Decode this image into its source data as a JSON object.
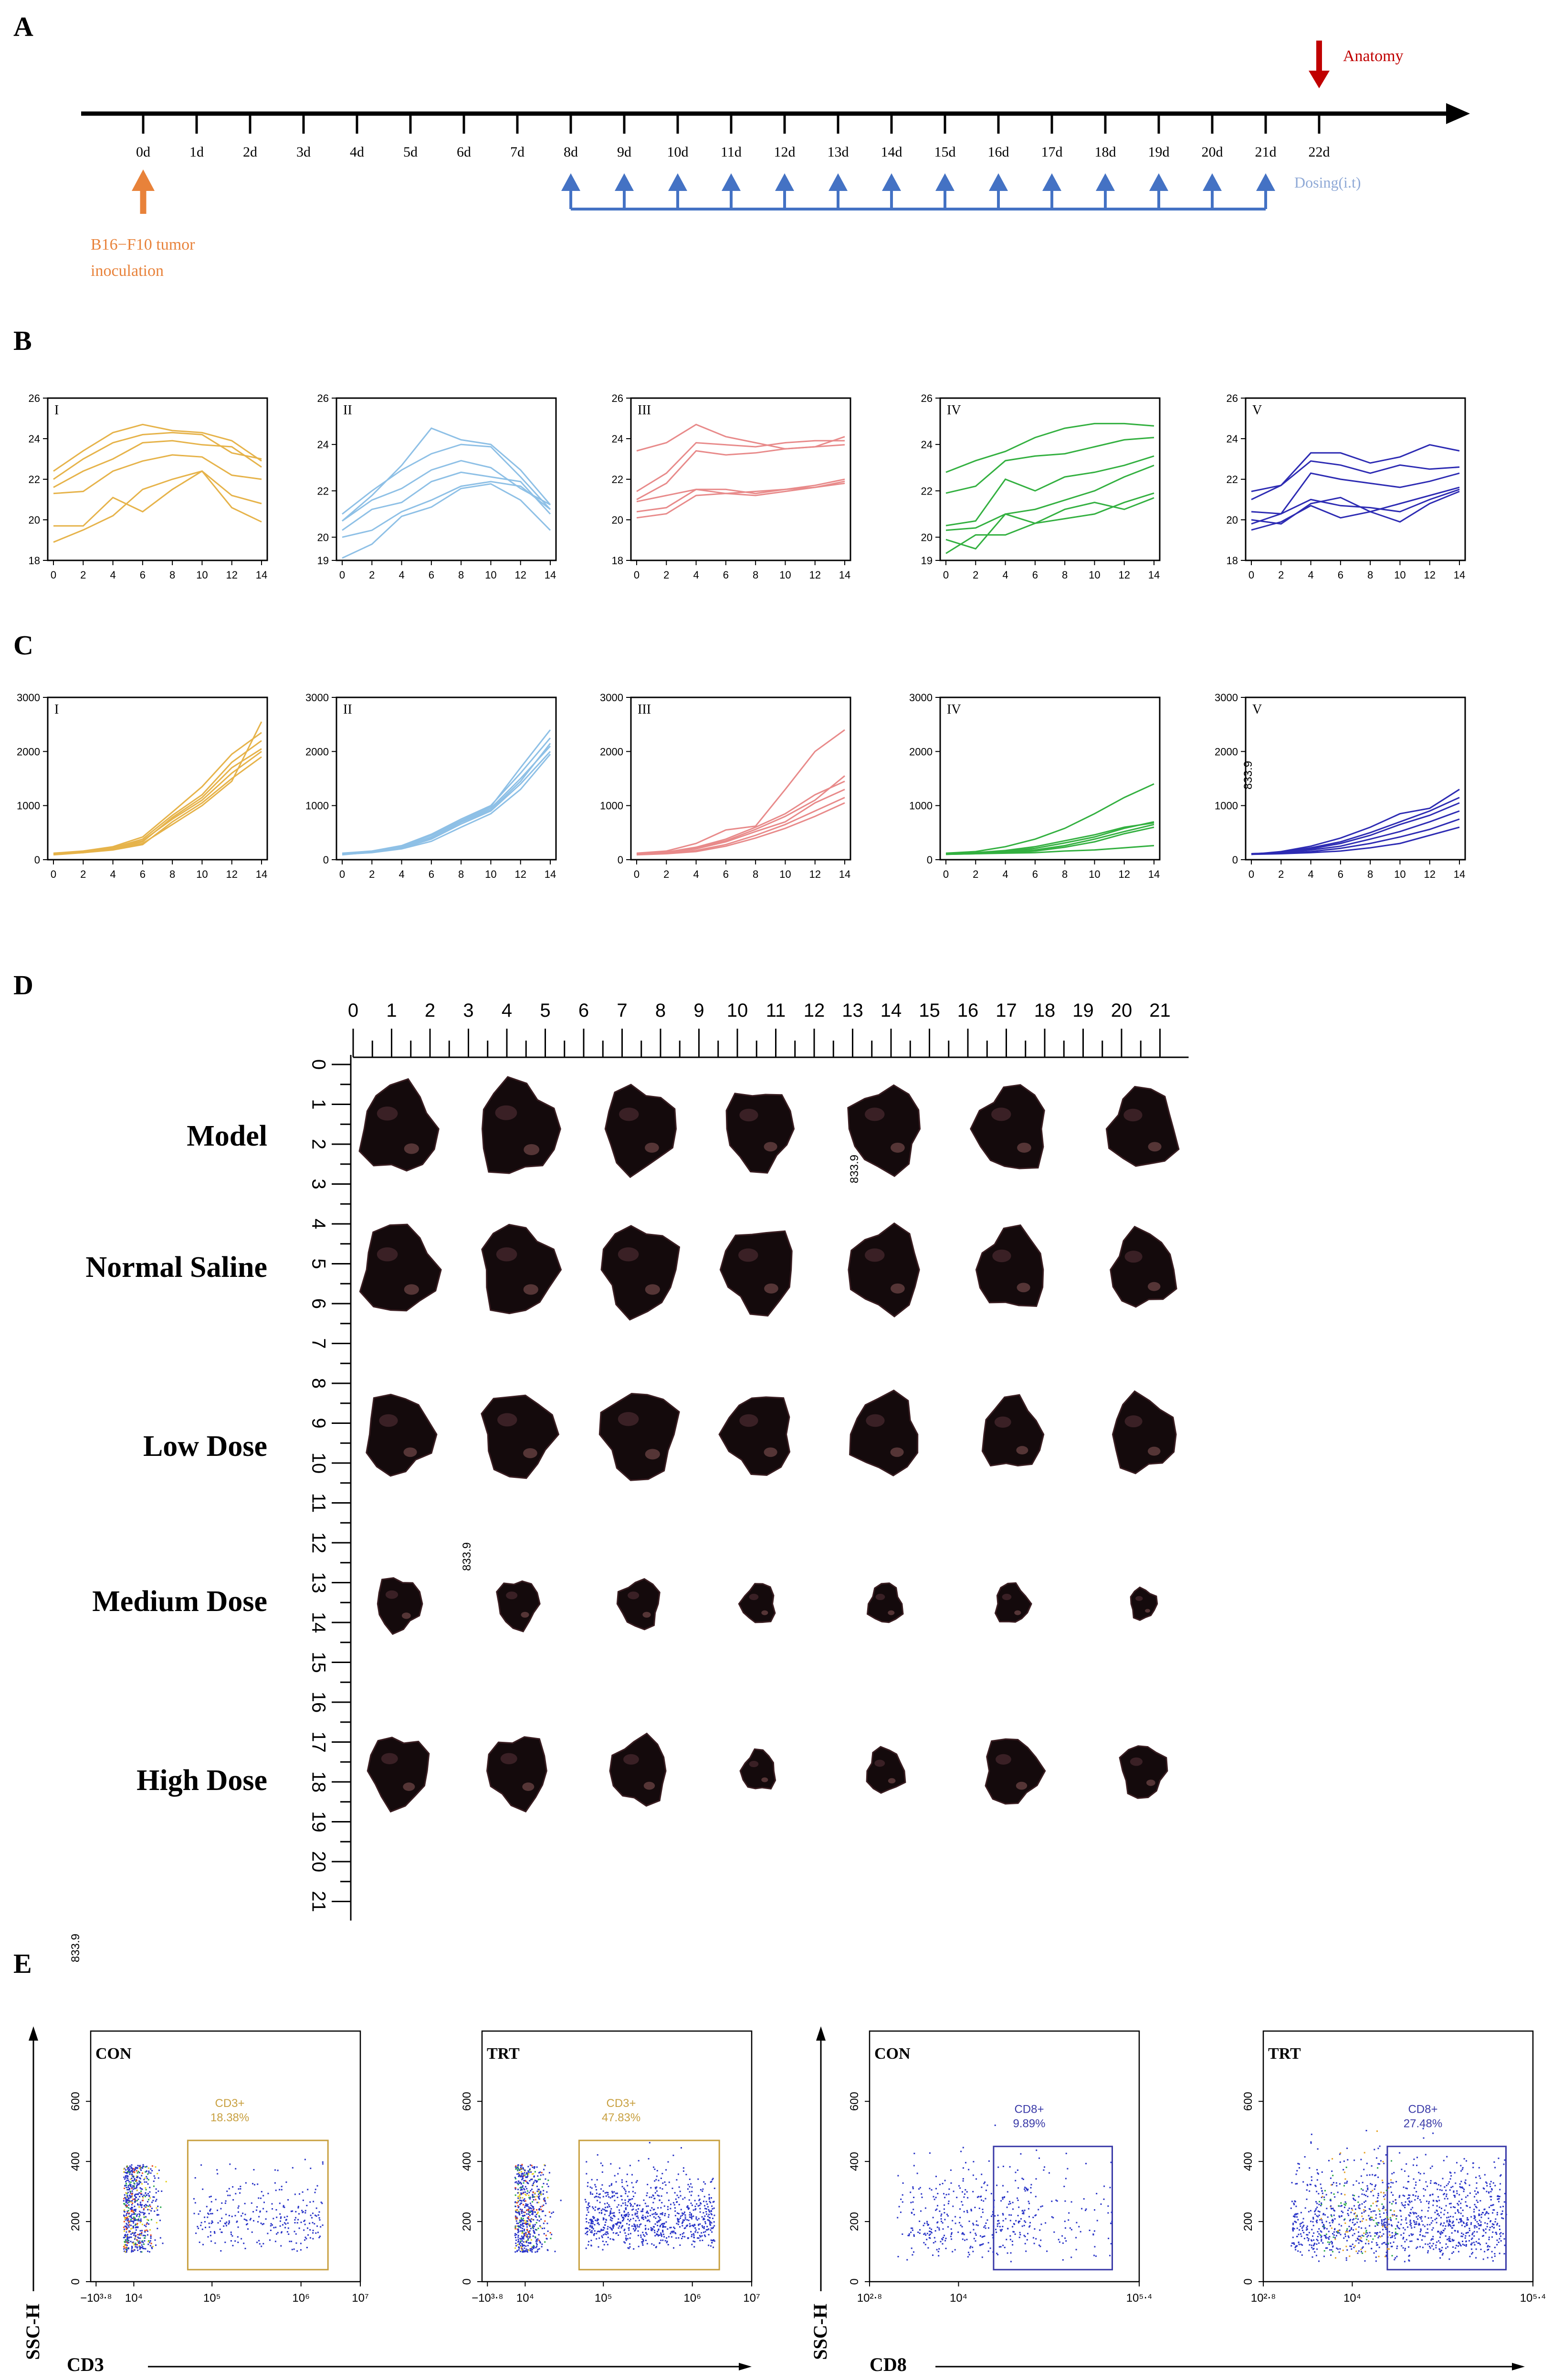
{
  "panels": {
    "a": "A",
    "b": "B",
    "c": "C",
    "d": "D",
    "e": "E"
  },
  "panel_a": {
    "days": [
      "0d",
      "1d",
      "2d",
      "3d",
      "4d",
      "5d",
      "6d",
      "7d",
      "8d",
      "9d",
      "10d",
      "11d",
      "12d",
      "13d",
      "14d",
      "15d",
      "16d",
      "17d",
      "18d",
      "19d",
      "20d",
      "21d",
      "22d"
    ],
    "anatomy": "Anatomy",
    "inoculation_line1": "B16−F10 tumor",
    "inoculation_line2": "inoculation",
    "dosing": "Dosing(i.t)",
    "dosing_days": [
      8,
      9,
      10,
      11,
      12,
      13,
      14,
      15,
      16,
      17,
      18,
      19,
      20,
      21
    ],
    "colors": {
      "inoculation": "#e8823a",
      "anatomy": "#c00000",
      "dosing": "#4472c4",
      "dosing_text": "#8fa9d6"
    }
  },
  "panel_b": {
    "chart_data": [
      {
        "type": "line",
        "label": "I",
        "color": "#e6b34a",
        "x": [
          0,
          2,
          4,
          6,
          8,
          10,
          12,
          14
        ],
        "ylim": [
          18,
          26
        ],
        "yticks": [
          18,
          20,
          22,
          24,
          26
        ],
        "xticks": [
          0,
          2,
          4,
          6,
          8,
          10,
          12,
          14
        ],
        "series": [
          [
            19.7,
            19.7,
            21.1,
            20.4,
            21.5,
            22.4,
            21.2,
            20.8
          ],
          [
            18.9,
            19.5,
            20.2,
            21.5,
            22.0,
            22.4,
            20.6,
            19.9
          ],
          [
            21.3,
            21.4,
            22.4,
            22.9,
            23.2,
            23.1,
            22.2,
            22.0
          ],
          [
            21.6,
            22.4,
            23.0,
            23.8,
            23.9,
            23.7,
            23.6,
            22.6
          ],
          [
            22.0,
            23.0,
            23.8,
            24.2,
            24.3,
            24.2,
            23.3,
            23.0
          ],
          [
            22.4,
            23.4,
            24.3,
            24.7,
            24.4,
            24.3,
            23.9,
            22.9
          ]
        ]
      },
      {
        "type": "line",
        "label": "II",
        "color": "#8ec0e6",
        "x": [
          0,
          2,
          4,
          6,
          8,
          10,
          12,
          14
        ],
        "ylim": [
          19,
          26
        ],
        "yticks": [
          19,
          20,
          22,
          24,
          26
        ],
        "xticks": [
          0,
          2,
          4,
          6,
          8,
          10,
          12,
          14
        ],
        "series": [
          [
            19.1,
            19.7,
            20.9,
            21.3,
            22.1,
            22.3,
            21.6,
            20.3
          ],
          [
            20.0,
            20.3,
            21.1,
            21.6,
            22.2,
            22.4,
            22.2,
            21.2
          ],
          [
            20.3,
            21.2,
            21.5,
            22.4,
            22.8,
            22.6,
            22.4,
            21.0
          ],
          [
            20.7,
            21.6,
            22.1,
            22.9,
            23.3,
            23.0,
            22.1,
            21.4
          ],
          [
            21.0,
            22.0,
            22.9,
            23.6,
            24.0,
            23.9,
            22.6,
            21.2
          ],
          [
            20.7,
            21.8,
            23.1,
            24.7,
            24.2,
            24.0,
            22.9,
            21.4
          ]
        ]
      },
      {
        "type": "line",
        "label": "III",
        "color": "#e88a8a",
        "x": [
          0,
          2,
          4,
          6,
          8,
          10,
          12,
          14
        ],
        "ylim": [
          18,
          26
        ],
        "yticks": [
          18,
          20,
          22,
          24,
          26
        ],
        "xticks": [
          0,
          2,
          4,
          6,
          8,
          10,
          12,
          14
        ],
        "series": [
          [
            20.1,
            20.3,
            21.2,
            21.3,
            21.4,
            21.5,
            21.7,
            22.0
          ],
          [
            20.4,
            20.6,
            21.5,
            21.3,
            21.2,
            21.4,
            21.6,
            21.8
          ],
          [
            20.9,
            21.2,
            21.5,
            21.5,
            21.3,
            21.5,
            21.6,
            21.9
          ],
          [
            21.0,
            21.8,
            23.4,
            23.2,
            23.3,
            23.5,
            23.6,
            24.1
          ],
          [
            21.4,
            22.3,
            23.8,
            23.7,
            23.6,
            23.8,
            23.9,
            23.9
          ],
          [
            23.4,
            23.8,
            24.7,
            24.1,
            23.8,
            23.5,
            23.6,
            23.7
          ]
        ]
      },
      {
        "type": "line",
        "label": "IV",
        "color": "#33b040",
        "x": [
          0,
          2,
          4,
          6,
          8,
          10,
          12,
          14
        ],
        "ylim": [
          19,
          26
        ],
        "yticks": [
          19,
          20,
          22,
          24,
          26
        ],
        "xticks": [
          0,
          2,
          4,
          6,
          8,
          10,
          12,
          14
        ],
        "series": [
          [
            19.3,
            20.1,
            20.1,
            20.6,
            20.8,
            21.0,
            21.5,
            21.9
          ],
          [
            20.3,
            20.4,
            21.0,
            21.2,
            21.6,
            22.0,
            22.6,
            23.1
          ],
          [
            19.9,
            19.5,
            21.0,
            20.6,
            21.2,
            21.5,
            21.2,
            21.7
          ],
          [
            20.5,
            20.7,
            22.5,
            22.0,
            22.6,
            22.8,
            23.1,
            23.5
          ],
          [
            21.9,
            22.2,
            23.3,
            23.5,
            23.6,
            23.9,
            24.2,
            24.3
          ],
          [
            22.8,
            23.3,
            23.7,
            24.3,
            24.7,
            24.9,
            24.9,
            24.8
          ]
        ]
      },
      {
        "type": "line",
        "label": "V",
        "color": "#2d2bb3",
        "x": [
          0,
          2,
          4,
          6,
          8,
          10,
          12,
          14
        ],
        "ylim": [
          18,
          26
        ],
        "yticks": [
          18,
          20,
          22,
          24,
          26
        ],
        "xticks": [
          0,
          2,
          4,
          6,
          8,
          10,
          12,
          14
        ],
        "series": [
          [
            19.5,
            19.9,
            20.7,
            20.1,
            20.4,
            19.9,
            20.8,
            21.4
          ],
          [
            19.8,
            20.3,
            21.0,
            20.7,
            20.6,
            20.4,
            21.0,
            21.5
          ],
          [
            20.0,
            19.8,
            20.8,
            21.1,
            20.4,
            20.8,
            21.2,
            21.6
          ],
          [
            20.4,
            20.3,
            22.3,
            22.0,
            21.8,
            21.6,
            21.9,
            22.3
          ],
          [
            21.0,
            21.7,
            22.9,
            22.7,
            22.3,
            22.7,
            22.5,
            22.6
          ],
          [
            21.4,
            21.7,
            23.3,
            23.3,
            22.8,
            23.1,
            23.7,
            23.4
          ]
        ]
      }
    ]
  },
  "panel_c": {
    "chart_data": [
      {
        "type": "line",
        "label": "I",
        "color": "#e6b34a",
        "x": [
          0,
          2,
          4,
          6,
          8,
          10,
          12,
          14
        ],
        "ylim": [
          0,
          3000
        ],
        "yticks": [
          0,
          1000,
          2000,
          3000
        ],
        "xticks": [
          0,
          2,
          4,
          6,
          8,
          10,
          12,
          14
        ],
        "series": [
          [
            100,
            130,
            180,
            280,
            700,
            1050,
            1500,
            1900
          ],
          [
            110,
            150,
            200,
            330,
            780,
            1150,
            1700,
            2050
          ],
          [
            100,
            140,
            220,
            380,
            820,
            1200,
            1800,
            2200
          ],
          [
            120,
            160,
            240,
            420,
            880,
            1350,
            1950,
            2350
          ],
          [
            100,
            150,
            210,
            350,
            750,
            1100,
            1600,
            2000
          ],
          [
            90,
            130,
            190,
            300,
            650,
            1000,
            1450,
            2550
          ]
        ]
      },
      {
        "type": "line",
        "label": "II",
        "color": "#8ec0e6",
        "x": [
          0,
          2,
          4,
          6,
          8,
          10,
          12,
          14
        ],
        "ylim": [
          0,
          3000
        ],
        "yticks": [
          0,
          1000,
          2000,
          3000
        ],
        "xticks": [
          0,
          2,
          4,
          6,
          8,
          10,
          12,
          14
        ],
        "series": [
          [
            100,
            140,
            210,
            380,
            660,
            900,
            1400,
            2000
          ],
          [
            110,
            150,
            230,
            420,
            700,
            950,
            1500,
            2100
          ],
          [
            100,
            130,
            200,
            340,
            600,
            850,
            1300,
            1950
          ],
          [
            120,
            160,
            260,
            470,
            750,
            1000,
            1600,
            2250
          ],
          [
            90,
            140,
            250,
            450,
            720,
            980,
            1700,
            2400
          ],
          [
            100,
            150,
            220,
            400,
            690,
            920,
            1450,
            2150
          ]
        ]
      },
      {
        "type": "line",
        "label": "III",
        "color": "#e88a8a",
        "x": [
          0,
          2,
          4,
          6,
          8,
          10,
          12,
          14
        ],
        "ylim": [
          0,
          3000
        ],
        "yticks": [
          0,
          1000,
          2000,
          3000
        ],
        "xticks": [
          0,
          2,
          4,
          6,
          8,
          10,
          12,
          14
        ],
        "series": [
          [
            90,
            110,
            150,
            250,
            400,
            580,
            800,
            1050
          ],
          [
            100,
            120,
            170,
            280,
            450,
            650,
            900,
            1150
          ],
          [
            100,
            130,
            200,
            330,
            520,
            700,
            1050,
            1300
          ],
          [
            110,
            140,
            230,
            380,
            600,
            850,
            1200,
            1450
          ],
          [
            120,
            160,
            300,
            550,
            620,
            1300,
            2000,
            2400
          ],
          [
            100,
            130,
            220,
            350,
            560,
            800,
            1100,
            1550
          ]
        ]
      },
      {
        "type": "line",
        "label": "IV",
        "color": "#33b040",
        "x": [
          0,
          2,
          4,
          6,
          8,
          10,
          12,
          14
        ],
        "ylim": [
          0,
          3000
        ],
        "yticks": [
          0,
          1000,
          2000,
          3000
        ],
        "xticks": [
          0,
          2,
          4,
          6,
          8,
          10,
          12,
          14
        ],
        "series": [
          [
            100,
            110,
            120,
            130,
            160,
            180,
            220,
            260
          ],
          [
            100,
            110,
            130,
            160,
            230,
            330,
            480,
            600
          ],
          [
            100,
            115,
            140,
            180,
            260,
            380,
            520,
            650
          ],
          [
            100,
            120,
            150,
            210,
            310,
            420,
            580,
            700
          ],
          [
            110,
            130,
            170,
            240,
            350,
            460,
            600,
            680
          ],
          [
            120,
            150,
            240,
            380,
            580,
            850,
            1150,
            1400
          ]
        ]
      },
      {
        "type": "line",
        "label": "V",
        "color": "#2d2bb3",
        "x": [
          0,
          2,
          4,
          6,
          8,
          10,
          12,
          14
        ],
        "ylim": [
          0,
          3000
        ],
        "yticks": [
          0,
          1000,
          2000,
          3000
        ],
        "xticks": [
          0,
          2,
          4,
          6,
          8,
          10,
          12,
          14
        ],
        "series": [
          [
            100,
            110,
            130,
            160,
            220,
            300,
            450,
            600
          ],
          [
            100,
            120,
            150,
            210,
            300,
            420,
            560,
            750
          ],
          [
            110,
            130,
            180,
            250,
            380,
            520,
            700,
            900
          ],
          [
            100,
            140,
            220,
            330,
            500,
            700,
            900,
            1150
          ],
          [
            100,
            150,
            250,
            400,
            600,
            850,
            950,
            1300
          ],
          [
            110,
            130,
            200,
            300,
            450,
            650,
            820,
            1050
          ]
        ]
      }
    ]
  },
  "panel_d": {
    "ruler_labels": [
      "0",
      "1",
      "2",
      "3",
      "4",
      "5",
      "6",
      "7",
      "8",
      "9",
      "10",
      "11",
      "12",
      "13",
      "14",
      "15",
      "16",
      "17",
      "18",
      "19",
      "20",
      "21"
    ],
    "groups": [
      "Model",
      "Normal Saline",
      "Low Dose",
      "Medium Dose",
      "High Dose"
    ],
    "tumor_sizes": [
      [
        1.0,
        1.05,
        0.95,
        0.9,
        0.95,
        0.95,
        0.9
      ],
      [
        1.0,
        1.0,
        1.0,
        0.95,
        0.95,
        0.9,
        0.85
      ],
      [
        0.9,
        0.95,
        1.0,
        0.9,
        0.9,
        0.8,
        0.85
      ],
      [
        0.6,
        0.55,
        0.55,
        0.45,
        0.45,
        0.45,
        0.35
      ],
      [
        0.8,
        0.8,
        0.75,
        0.45,
        0.5,
        0.75,
        0.6
      ]
    ]
  },
  "panel_e": {
    "plots": [
      {
        "sample": "CON",
        "gate": "CD3+",
        "pct": "18.38%",
        "ytop": "833.9",
        "yticks": [
          "0",
          "200",
          "400",
          "600"
        ],
        "xticks": [
          "−10³⋅⁸",
          "10⁴",
          "10⁵",
          "10⁶",
          "10⁷"
        ],
        "gate_color": "#c8a040"
      },
      {
        "sample": "TRT",
        "gate": "CD3+",
        "pct": "47.83%",
        "ytop": "833.9",
        "yticks": [
          "0",
          "200",
          "400",
          "600"
        ],
        "xticks": [
          "−10³⋅⁸",
          "10⁴",
          "10⁵",
          "10⁶",
          "10⁷"
        ],
        "gate_color": "#c8a040"
      },
      {
        "sample": "CON",
        "gate": "CD8+",
        "pct": "9.89%",
        "ytop": "833.9",
        "yticks": [
          "0",
          "200",
          "400",
          "600"
        ],
        "xticks": [
          "10²⋅⁸",
          "10⁴",
          "10⁵⋅⁴"
        ],
        "gate_color": "#3a3aa8"
      },
      {
        "sample": "TRT",
        "gate": "CD8+",
        "pct": "27.48%",
        "ytop": "833.9",
        "yticks": [
          "0",
          "200",
          "400",
          "600"
        ],
        "xticks": [
          "10²⋅⁸",
          "10⁴",
          "10⁵⋅⁴"
        ],
        "gate_color": "#3a3aa8"
      }
    ],
    "yaxis": "SSC-H",
    "xaxis_left": "CD3",
    "xaxis_right": "CD8"
  }
}
